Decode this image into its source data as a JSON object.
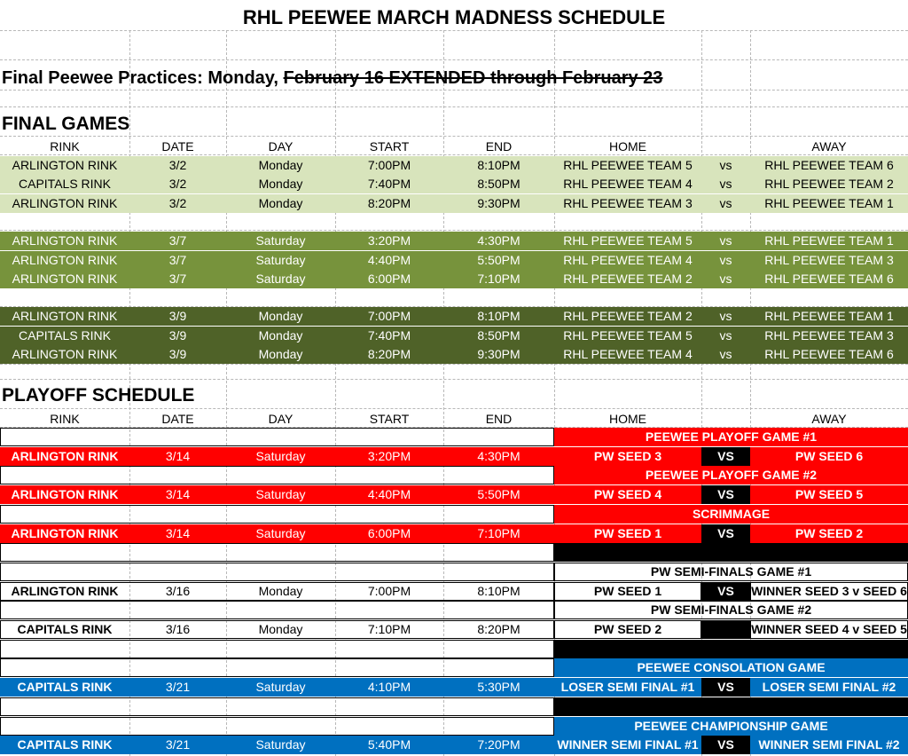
{
  "title": "RHL PEEWEE MARCH MADNESS SCHEDULE",
  "practice": {
    "text": "Final Peewee Practices: Monday,",
    "struck": "February 16 EXTENDED through February 23"
  },
  "columns": [
    "RINK",
    "DATE",
    "DAY",
    "START",
    "END",
    "HOME",
    "",
    "AWAY"
  ],
  "colors": {
    "game_set_1": "#d8e4bc",
    "game_set_2": "#77933c",
    "game_set_3": "#4f6228",
    "playoff_red": "#ff0000",
    "consolation_blue": "#0070c0",
    "black": "#000000"
  },
  "final_games": {
    "heading": "FINAL GAMES",
    "rows": [
      {
        "rink": "ARLINGTON RINK",
        "date": "3/2",
        "day": "Monday",
        "start": "7:00PM",
        "end": "8:10PM",
        "home": "RHL PEEWEE TEAM 5",
        "vs": "vs",
        "away": "RHL PEEWEE TEAM 6",
        "color": "game_set_1"
      },
      {
        "rink": "CAPITALS RINK",
        "date": "3/2",
        "day": "Monday",
        "start": "7:40PM",
        "end": "8:50PM",
        "home": "RHL PEEWEE TEAM 4",
        "vs": "vs",
        "away": "RHL PEEWEE TEAM 2",
        "color": "game_set_1"
      },
      {
        "rink": "ARLINGTON RINK",
        "date": "3/2",
        "day": "Monday",
        "start": "8:20PM",
        "end": "9:30PM",
        "home": "RHL PEEWEE TEAM 3",
        "vs": "vs",
        "away": "RHL PEEWEE TEAM 1",
        "color": "game_set_1"
      },
      {
        "blank": true
      },
      {
        "rink": "ARLINGTON RINK",
        "date": "3/7",
        "day": "Saturday",
        "start": "3:20PM",
        "end": "4:30PM",
        "home": "RHL PEEWEE TEAM 5",
        "vs": "vs",
        "away": "RHL PEEWEE TEAM 1",
        "color": "game_set_2"
      },
      {
        "rink": "ARLINGTON RINK",
        "date": "3/7",
        "day": "Saturday",
        "start": "4:40PM",
        "end": "5:50PM",
        "home": "RHL PEEWEE TEAM 4",
        "vs": "vs",
        "away": "RHL PEEWEE TEAM 3",
        "color": "game_set_2"
      },
      {
        "rink": "ARLINGTON RINK",
        "date": "3/7",
        "day": "Saturday",
        "start": "6:00PM",
        "end": "7:10PM",
        "home": "RHL PEEWEE TEAM 2",
        "vs": "vs",
        "away": "RHL PEEWEE TEAM 6",
        "color": "game_set_2"
      },
      {
        "blank": true
      },
      {
        "rink": "ARLINGTON RINK",
        "date": "3/9",
        "day": "Monday",
        "start": "7:00PM",
        "end": "8:10PM",
        "home": "RHL PEEWEE TEAM 2",
        "vs": "vs",
        "away": "RHL PEEWEE TEAM 1",
        "color": "game_set_3"
      },
      {
        "rink": "CAPITALS RINK",
        "date": "3/9",
        "day": "Monday",
        "start": "7:40PM",
        "end": "8:50PM",
        "home": "RHL PEEWEE TEAM 5",
        "vs": "vs",
        "away": "RHL PEEWEE TEAM 3",
        "color": "game_set_3"
      },
      {
        "rink": "ARLINGTON RINK",
        "date": "3/9",
        "day": "Monday",
        "start": "8:20PM",
        "end": "9:30PM",
        "home": "RHL PEEWEE TEAM 4",
        "vs": "vs",
        "away": "RHL PEEWEE TEAM 6",
        "color": "game_set_3"
      }
    ]
  },
  "playoff": {
    "heading": "PLAYOFF SCHEDULE",
    "rows": [
      {
        "kind": "label",
        "text": "PEEWEE PLAYOFF GAME #1",
        "color": "playoff_red"
      },
      {
        "kind": "game",
        "rink": "ARLINGTON RINK",
        "date": "3/14",
        "day": "Saturday",
        "start": "3:20PM",
        "end": "4:30PM",
        "home": "PW SEED 3",
        "vs": "VS",
        "away": "PW SEED 6",
        "color": "playoff_red"
      },
      {
        "kind": "label",
        "text": "PEEWEE PLAYOFF GAME #2",
        "color": "playoff_red"
      },
      {
        "kind": "game",
        "rink": "ARLINGTON RINK",
        "date": "3/14",
        "day": "Saturday",
        "start": "4:40PM",
        "end": "5:50PM",
        "home": "PW SEED 4",
        "vs": "VS",
        "away": "PW SEED 5",
        "color": "playoff_red"
      },
      {
        "kind": "label",
        "text": "SCRIMMAGE",
        "color": "playoff_red"
      },
      {
        "kind": "game",
        "rink": "ARLINGTON RINK",
        "date": "3/14",
        "day": "Saturday",
        "start": "6:00PM",
        "end": "7:10PM",
        "home": "PW SEED 1",
        "vs": "VS",
        "away": "PW SEED 2",
        "color": "playoff_red"
      },
      {
        "kind": "spacer"
      },
      {
        "kind": "label",
        "text": "PW SEMI-FINALS GAME #1",
        "color": null
      },
      {
        "kind": "game",
        "rink": "ARLINGTON RINK",
        "date": "3/16",
        "day": "Monday",
        "start": "7:00PM",
        "end": "8:10PM",
        "home": "PW SEED 1",
        "vs": "VS",
        "away": "WINNER SEED 3 v SEED 6",
        "color": null
      },
      {
        "kind": "label",
        "text": "PW SEMI-FINALS GAME #2",
        "color": null
      },
      {
        "kind": "game",
        "rink": "CAPITALS RINK",
        "date": "3/16",
        "day": "Monday",
        "start": "7:10PM",
        "end": "8:20PM",
        "home": "PW SEED 2",
        "vs": "",
        "away": "WINNER SEED 4 v SEED 5",
        "color": null
      },
      {
        "kind": "spacer"
      },
      {
        "kind": "label",
        "text": "PEEWEE CONSOLATION GAME",
        "color": "consolation_blue"
      },
      {
        "kind": "game",
        "rink": "CAPITALS RINK",
        "date": "3/21",
        "day": "Saturday",
        "start": "4:10PM",
        "end": "5:30PM",
        "home": "LOSER SEMI FINAL #1",
        "vs": "VS",
        "away": "LOSER SEMI FINAL #2",
        "color": "consolation_blue"
      },
      {
        "kind": "spacer"
      },
      {
        "kind": "label",
        "text": "PEEWEE CHAMPIONSHIP GAME",
        "color": "consolation_blue"
      },
      {
        "kind": "game",
        "rink": "CAPITALS RINK",
        "date": "3/21",
        "day": "Saturday",
        "start": "5:40PM",
        "end": "7:20PM",
        "home": "WINNER SEMI FINAL #1",
        "vs": "VS",
        "away": "WINNER SEMI FINAL #2",
        "color": "consolation_blue"
      }
    ]
  }
}
